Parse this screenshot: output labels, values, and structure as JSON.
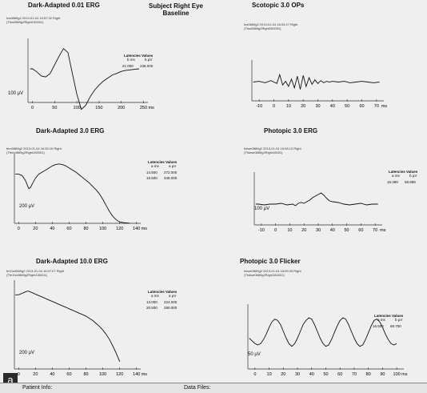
{
  "header": {
    "title": "Subject Right Eye",
    "subtitle": "Baseline"
  },
  "figure_label": "a",
  "bottom": {
    "left": "Patient Info:",
    "right": "Data Files:"
  },
  "chart_data": [
    {
      "type": "line",
      "title": "Dark-Adapted 0.01 ERG",
      "subtitle": [
        "fos0889g2  2013-01-04  15:57:32  Right",
        "(Tfos0889g2Right150001)"
      ],
      "y_scale_label": "100 µV",
      "x_unit": "ms",
      "xticks": [
        0,
        50,
        100,
        150,
        200,
        250
      ],
      "xlim": [
        -10,
        260
      ],
      "ylim": [
        -90,
        60
      ],
      "x": [
        -5,
        0,
        10,
        20,
        30,
        40,
        50,
        60,
        70,
        80,
        90,
        100,
        110,
        120,
        130,
        140,
        150,
        160,
        170,
        180,
        190,
        200,
        210,
        220,
        230,
        240
      ],
      "y": [
        0,
        0,
        -6,
        -14,
        -16,
        -9,
        8,
        25,
        40,
        32,
        -10,
        -50,
        -80,
        -72,
        -55,
        -42,
        -32,
        -24,
        -18,
        -12,
        -9,
        -5,
        -3,
        -2,
        -1,
        0
      ],
      "latencies": {
        "header": [
          "Latencies",
          "Values"
        ],
        "units": [
          "b ms",
          "b µV"
        ],
        "rows": [
          [
            "21.000",
            "236.000"
          ]
        ]
      }
    },
    {
      "type": "line",
      "title": "Scotopic 3.0 OPs",
      "subtitle": [
        "fos0889g2  2013-01-04  16:04:27  Right",
        "(Tfos0889g2Right250001)"
      ],
      "y_scale_label": "",
      "x_unit": "ms",
      "xticks": [
        -10,
        0,
        10,
        20,
        30,
        40,
        50,
        60,
        70
      ],
      "xlim": [
        -15,
        75
      ],
      "ylim": [
        -30,
        30
      ],
      "x": [
        -14,
        -10,
        -6,
        -2,
        0,
        2,
        4,
        6,
        8,
        10,
        12,
        14,
        16,
        18,
        20,
        22,
        24,
        26,
        28,
        30,
        32,
        34,
        36,
        38,
        40,
        44,
        48,
        52,
        56,
        60,
        64,
        68,
        72
      ],
      "y": [
        0,
        1,
        -1,
        2,
        0,
        -2,
        10,
        -4,
        1,
        -6,
        4,
        -8,
        8,
        -10,
        9,
        -6,
        6,
        -3,
        3,
        -2,
        2,
        -1,
        1,
        0,
        1,
        0,
        1,
        -1,
        0,
        1,
        0,
        -1,
        0
      ]
    },
    {
      "type": "line",
      "title": "Dark-Adapted 3.0 ERG",
      "subtitle": [
        "fem0889g2  2013-01-04  16:00:15  Right",
        "(Tfem0889g2Right150001)"
      ],
      "y_scale_label": "200 µV",
      "x_unit": "ms",
      "xticks": [
        0,
        20,
        40,
        60,
        80,
        100,
        120,
        140
      ],
      "xlim": [
        -5,
        145
      ],
      "ylim": [
        -140,
        90
      ],
      "x": [
        -4,
        0,
        4,
        8,
        12,
        14,
        16,
        20,
        24,
        28,
        32,
        36,
        40,
        44,
        48,
        52,
        56,
        60,
        64,
        68,
        72,
        76,
        80,
        84,
        88,
        92,
        96,
        100,
        104,
        108,
        112,
        116,
        120,
        124,
        128,
        132
      ],
      "y": [
        30,
        30,
        26,
        12,
        -12,
        -10,
        0,
        18,
        30,
        36,
        42,
        48,
        54,
        58,
        60,
        58,
        54,
        48,
        42,
        36,
        28,
        20,
        12,
        4,
        -6,
        -16,
        -28,
        -44,
        -62,
        -80,
        -94,
        -104,
        -110,
        -112,
        -113,
        -114
      ],
      "latencies": {
        "header": [
          "Latencies",
          "Values"
        ],
        "units": [
          "a ms",
          "a µV"
        ],
        "rows": [
          [
            "14.500",
            "272.000"
          ],
          [
            "19.500",
            "348.000"
          ]
        ]
      }
    },
    {
      "type": "line",
      "title": "Photopic 3.0 ERG",
      "subtitle": [
        "fotwe0889g2  2013-01-04  16:08:12  Right",
        "(Tfotwe0889g2Right15001)"
      ],
      "y_scale_label": "100 µV",
      "x_unit": "ms",
      "xticks": [
        -10,
        0,
        10,
        20,
        30,
        40,
        50,
        60,
        70
      ],
      "xlim": [
        -15,
        75
      ],
      "ylim": [
        -30,
        40
      ],
      "x": [
        -14,
        -12,
        -8,
        -4,
        0,
        4,
        8,
        12,
        14,
        16,
        18,
        20,
        22,
        24,
        26,
        28,
        30,
        32,
        34,
        36,
        38,
        40,
        44,
        48,
        52,
        56,
        60,
        64,
        68,
        72
      ],
      "y": [
        0,
        0,
        -1,
        0,
        0,
        1,
        -1,
        0,
        -2,
        1,
        2,
        1,
        3,
        5,
        8,
        10,
        12,
        14,
        11,
        7,
        4,
        3,
        2,
        0,
        -1,
        0,
        1,
        -1,
        0,
        0
      ],
      "latencies": {
        "header": [
          "Latencies",
          "Values"
        ],
        "units": [
          "a ms",
          "b µV"
        ],
        "rows": [
          [
            "16.389",
            "68.889"
          ]
        ]
      }
    },
    {
      "type": "line",
      "title": "Dark-Adapted 10.0 ERG",
      "subtitle": [
        "fe10o0889g2  2013-01-04  16:07:27  Right",
        "(Tfe10o0889g2Right150001)"
      ],
      "y_scale_label": "200 µV",
      "x_unit": "ms",
      "xticks": [
        0,
        20,
        40,
        60,
        80,
        100,
        120,
        140
      ],
      "xlim": [
        -5,
        145
      ],
      "ylim": [
        -140,
        100
      ],
      "x": [
        -4,
        0,
        2,
        4,
        6,
        8,
        10,
        12,
        14,
        16,
        20,
        24,
        28,
        32,
        36,
        40,
        44,
        48,
        52,
        56,
        60,
        64,
        68,
        72,
        76,
        80,
        84,
        88,
        92,
        96,
        100,
        104,
        108,
        112,
        116,
        120
      ],
      "y": [
        60,
        60,
        62,
        64,
        66,
        68,
        70,
        70,
        68,
        66,
        62,
        58,
        54,
        50,
        46,
        42,
        38,
        34,
        30,
        26,
        22,
        18,
        14,
        10,
        6,
        2,
        -4,
        -10,
        -18,
        -26,
        -36,
        -48,
        -62,
        -80,
        -100,
        -122
      ],
      "latencies": {
        "header": [
          "Latencies",
          "Values"
        ],
        "units": [
          "a ms",
          "a µV"
        ],
        "rows": [
          [
            "13.000",
            "224.000"
          ],
          [
            "20.500",
            "280.000"
          ]
        ]
      }
    },
    {
      "type": "line",
      "title": "Photopic 3.0 Flicker",
      "subtitle": [
        "fotwe0889g2  2013-01-04  16:09:45  Right",
        "(Tfotwe0889g2Right150001)"
      ],
      "y_scale_label": "50 µV",
      "x_unit": "ms",
      "xticks": [
        0,
        10,
        20,
        30,
        40,
        50,
        60,
        70,
        80,
        90,
        100
      ],
      "xlim": [
        -5,
        105
      ],
      "ylim": [
        -60,
        40
      ],
      "x": [
        -4,
        -2,
        0,
        2,
        4,
        6,
        8,
        10,
        12,
        14,
        16,
        18,
        20,
        22,
        24,
        26,
        28,
        30,
        32,
        34,
        36,
        38,
        40,
        42,
        44,
        46,
        48,
        50,
        52,
        54,
        56,
        58,
        60,
        62,
        64,
        66,
        68,
        70,
        72,
        74,
        76,
        78,
        80,
        82,
        84,
        86,
        88,
        90,
        92,
        94,
        96,
        98,
        100
      ],
      "y": [
        -10,
        -14,
        -18,
        -20,
        -18,
        -12,
        -4,
        6,
        14,
        18,
        16,
        10,
        0,
        -10,
        -18,
        -22,
        -18,
        -10,
        0,
        10,
        16,
        20,
        18,
        10,
        0,
        -10,
        -18,
        -22,
        -20,
        -12,
        -2,
        8,
        16,
        20,
        18,
        10,
        0,
        -10,
        -18,
        -22,
        -20,
        -12,
        -2,
        8,
        16,
        18,
        14,
        6,
        -4,
        -12,
        -18,
        -20,
        -18
      ],
      "latencies": {
        "header": [
          "Latencies",
          "Values"
        ],
        "units": [
          "a ms",
          "b µV"
        ],
        "rows": [
          [
            "16.500",
            "68.750"
          ]
        ]
      }
    }
  ]
}
